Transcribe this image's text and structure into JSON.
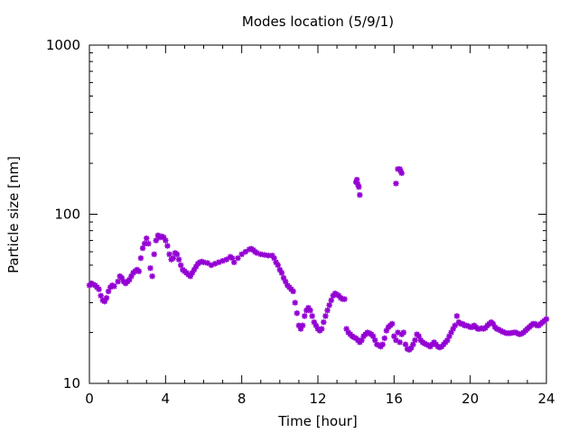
{
  "chart_data": {
    "type": "scatter",
    "title": "Modes location (5/9/1)",
    "xlabel": "Time [hour]",
    "ylabel": "Particle size [nm]",
    "xlim": [
      0,
      24
    ],
    "ylim": [
      10,
      1000
    ],
    "yscale": "log",
    "grid": false,
    "legend": "none",
    "marker": "asterisk",
    "marker_color": "#9400d3",
    "x_ticks": [
      0,
      4,
      8,
      12,
      16,
      20,
      24
    ],
    "x_tick_labels": [
      "0",
      "4",
      "8",
      "12",
      "16",
      "20",
      "24"
    ],
    "y_ticks": [
      10,
      100,
      1000
    ],
    "y_tick_labels": [
      "10",
      "100",
      "1000"
    ],
    "series": [
      {
        "points": [
          [
            0.0,
            38
          ],
          [
            0.1,
            39
          ],
          [
            0.2,
            38.5
          ],
          [
            0.3,
            38
          ],
          [
            0.4,
            37
          ],
          [
            0.5,
            36
          ],
          [
            0.6,
            33
          ],
          [
            0.7,
            31
          ],
          [
            0.8,
            30.5
          ],
          [
            0.9,
            32
          ],
          [
            1.0,
            35
          ],
          [
            1.1,
            37
          ],
          [
            1.2,
            38
          ],
          [
            1.3,
            37.5
          ],
          [
            1.5,
            40
          ],
          [
            1.6,
            43
          ],
          [
            1.7,
            42
          ],
          [
            1.8,
            40
          ],
          [
            1.9,
            39
          ],
          [
            2.0,
            40
          ],
          [
            2.1,
            41
          ],
          [
            2.2,
            43
          ],
          [
            2.3,
            45
          ],
          [
            2.4,
            46
          ],
          [
            2.5,
            47
          ],
          [
            2.6,
            46
          ],
          [
            2.7,
            55
          ],
          [
            2.8,
            63
          ],
          [
            2.9,
            67
          ],
          [
            3.0,
            72
          ],
          [
            3.1,
            67
          ],
          [
            3.2,
            48
          ],
          [
            3.3,
            43
          ],
          [
            3.4,
            58
          ],
          [
            3.5,
            70
          ],
          [
            3.6,
            75
          ],
          [
            3.7,
            73
          ],
          [
            3.8,
            74
          ],
          [
            3.9,
            73
          ],
          [
            4.0,
            70
          ],
          [
            4.1,
            65
          ],
          [
            4.2,
            58
          ],
          [
            4.3,
            54
          ],
          [
            4.4,
            55
          ],
          [
            4.5,
            59
          ],
          [
            4.6,
            58
          ],
          [
            4.7,
            54
          ],
          [
            4.8,
            50
          ],
          [
            4.9,
            47
          ],
          [
            5.0,
            46
          ],
          [
            5.1,
            45
          ],
          [
            5.2,
            44
          ],
          [
            5.3,
            43
          ],
          [
            5.4,
            45
          ],
          [
            5.5,
            47
          ],
          [
            5.6,
            49
          ],
          [
            5.7,
            51
          ],
          [
            5.8,
            52
          ],
          [
            5.9,
            52.5
          ],
          [
            6.0,
            52
          ],
          [
            6.2,
            51.5
          ],
          [
            6.4,
            50
          ],
          [
            6.6,
            51
          ],
          [
            6.8,
            52
          ],
          [
            7.0,
            53
          ],
          [
            7.2,
            54
          ],
          [
            7.4,
            56
          ],
          [
            7.5,
            55
          ],
          [
            7.6,
            52
          ],
          [
            7.8,
            55
          ],
          [
            8.0,
            58
          ],
          [
            8.2,
            60
          ],
          [
            8.4,
            62
          ],
          [
            8.5,
            62.5
          ],
          [
            8.6,
            61.5
          ],
          [
            8.7,
            60
          ],
          [
            8.8,
            59
          ],
          [
            9.0,
            58
          ],
          [
            9.2,
            57.5
          ],
          [
            9.4,
            57
          ],
          [
            9.6,
            57
          ],
          [
            9.7,
            55
          ],
          [
            9.8,
            52
          ],
          [
            9.9,
            50
          ],
          [
            10.0,
            47
          ],
          [
            10.1,
            45
          ],
          [
            10.2,
            42
          ],
          [
            10.3,
            40
          ],
          [
            10.4,
            38
          ],
          [
            10.5,
            37
          ],
          [
            10.6,
            36
          ],
          [
            10.7,
            35
          ],
          [
            10.8,
            30
          ],
          [
            10.9,
            26
          ],
          [
            11.0,
            22
          ],
          [
            11.1,
            21
          ],
          [
            11.2,
            22
          ],
          [
            11.3,
            25
          ],
          [
            11.4,
            27
          ],
          [
            11.5,
            28
          ],
          [
            11.6,
            27
          ],
          [
            11.7,
            25
          ],
          [
            11.8,
            23
          ],
          [
            11.9,
            22
          ],
          [
            12.0,
            21
          ],
          [
            12.1,
            20.5
          ],
          [
            12.2,
            21
          ],
          [
            12.3,
            23
          ],
          [
            12.4,
            25
          ],
          [
            12.5,
            27
          ],
          [
            12.6,
            29
          ],
          [
            12.7,
            31
          ],
          [
            12.8,
            33
          ],
          [
            12.9,
            34
          ],
          [
            13.0,
            33.5
          ],
          [
            13.1,
            33
          ],
          [
            13.2,
            32
          ],
          [
            13.3,
            31.5
          ],
          [
            13.4,
            31.5
          ],
          [
            13.5,
            21
          ],
          [
            13.6,
            20
          ],
          [
            13.7,
            19.5
          ],
          [
            13.8,
            19
          ],
          [
            13.9,
            18.7
          ],
          [
            14.0,
            18.5
          ],
          [
            14.1,
            18
          ],
          [
            14.2,
            17.5
          ],
          [
            14.3,
            18
          ],
          [
            14.4,
            19
          ],
          [
            14.5,
            19.5
          ],
          [
            14.6,
            20
          ],
          [
            14.7,
            19.8
          ],
          [
            14.8,
            19.5
          ],
          [
            14.9,
            19
          ],
          [
            15.0,
            18
          ],
          [
            15.1,
            17
          ],
          [
            15.2,
            16.8
          ],
          [
            15.3,
            16.5
          ],
          [
            15.4,
            17
          ],
          [
            15.5,
            18.5
          ],
          [
            15.6,
            20.5
          ],
          [
            15.7,
            21.5
          ],
          [
            15.8,
            22
          ],
          [
            15.9,
            22.5
          ],
          [
            16.0,
            19
          ],
          [
            16.1,
            18
          ],
          [
            16.2,
            20
          ],
          [
            16.3,
            17.5
          ],
          [
            16.4,
            19.5
          ],
          [
            16.5,
            20
          ],
          [
            16.6,
            17
          ],
          [
            16.7,
            16
          ],
          [
            16.8,
            15.8
          ],
          [
            16.9,
            16.2
          ],
          [
            17.0,
            17
          ],
          [
            17.1,
            18
          ],
          [
            17.2,
            19.5
          ],
          [
            17.3,
            19
          ],
          [
            17.4,
            18
          ],
          [
            17.5,
            17.5
          ],
          [
            17.6,
            17.2
          ],
          [
            17.7,
            17
          ],
          [
            17.8,
            16.8
          ],
          [
            17.9,
            16.5
          ],
          [
            18.0,
            17
          ],
          [
            18.1,
            17.5
          ],
          [
            18.2,
            17
          ],
          [
            18.3,
            16.5
          ],
          [
            18.4,
            16.3
          ],
          [
            18.5,
            16.5
          ],
          [
            18.6,
            17
          ],
          [
            18.7,
            17.5
          ],
          [
            18.8,
            18
          ],
          [
            18.9,
            19
          ],
          [
            19.0,
            20
          ],
          [
            19.1,
            21
          ],
          [
            19.2,
            22
          ],
          [
            19.3,
            25
          ],
          [
            19.4,
            23
          ],
          [
            19.5,
            22.5
          ],
          [
            19.6,
            22.5
          ],
          [
            19.7,
            22
          ],
          [
            19.8,
            22
          ],
          [
            19.9,
            21.8
          ],
          [
            20.0,
            21.5
          ],
          [
            20.1,
            21.5
          ],
          [
            20.2,
            22
          ],
          [
            20.3,
            21.5
          ],
          [
            20.4,
            21
          ],
          [
            20.5,
            21
          ],
          [
            20.6,
            21.2
          ],
          [
            20.7,
            21
          ],
          [
            20.8,
            21.3
          ],
          [
            20.9,
            22
          ],
          [
            21.0,
            22.5
          ],
          [
            21.1,
            23
          ],
          [
            21.2,
            22.5
          ],
          [
            21.3,
            21.5
          ],
          [
            21.4,
            21
          ],
          [
            21.5,
            20.8
          ],
          [
            21.6,
            20.5
          ],
          [
            21.7,
            20.2
          ],
          [
            21.8,
            20
          ],
          [
            21.9,
            19.8
          ],
          [
            22.0,
            19.8
          ],
          [
            22.1,
            19.8
          ],
          [
            22.2,
            19.9
          ],
          [
            22.3,
            20
          ],
          [
            22.4,
            20
          ],
          [
            22.5,
            19.7
          ],
          [
            22.6,
            19.5
          ],
          [
            22.7,
            19.7
          ],
          [
            22.8,
            20
          ],
          [
            22.9,
            20.5
          ],
          [
            23.0,
            21
          ],
          [
            23.1,
            21.5
          ],
          [
            23.2,
            22
          ],
          [
            23.3,
            22.5
          ],
          [
            23.4,
            22.5
          ],
          [
            23.5,
            22
          ],
          [
            23.6,
            22
          ],
          [
            23.7,
            22.5
          ],
          [
            23.8,
            23
          ],
          [
            23.9,
            23.5
          ],
          [
            24.0,
            24
          ],
          [
            14.0,
            155
          ],
          [
            14.05,
            160
          ],
          [
            14.1,
            150
          ],
          [
            14.15,
            145
          ],
          [
            14.2,
            130
          ],
          [
            16.1,
            152
          ],
          [
            16.2,
            185
          ],
          [
            16.3,
            185
          ],
          [
            16.35,
            180
          ],
          [
            16.4,
            175
          ]
        ]
      }
    ]
  }
}
